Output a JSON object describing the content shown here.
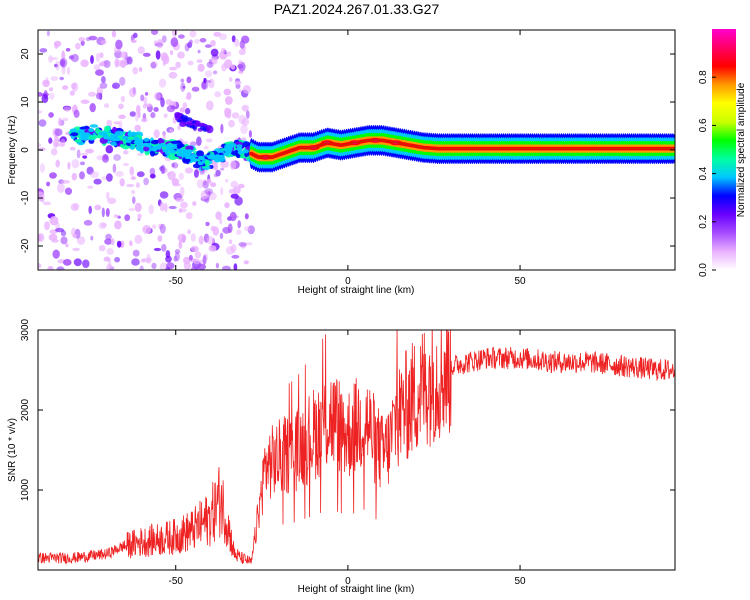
{
  "title": "PAZ1.2024.267.01.33.G27",
  "chart_data": [
    {
      "type": "heatmap",
      "xlabel": "Height of straight line (km)",
      "ylabel": "Frequency (Hz)",
      "xlim": [
        -90,
        95
      ],
      "ylim": [
        -25,
        25
      ],
      "x_ticks": [
        -50,
        0,
        50
      ],
      "y_ticks": [
        -20,
        -10,
        0,
        10,
        20
      ],
      "colorbar": {
        "label": "Normalized spectral amplitude",
        "range": [
          0,
          1
        ],
        "ticks": [
          "0.0",
          "0.2",
          "0.4",
          "0.6",
          "0.8"
        ],
        "colors": [
          "#ffffff",
          "#e9b0ff",
          "#a64dff",
          "#6a00ff",
          "#0000ff",
          "#00c8ff",
          "#00ff9e",
          "#00ff00",
          "#ccff00",
          "#ffff00",
          "#ff9900",
          "#ff0000",
          "#ff0066",
          "#ff00cc"
        ]
      },
      "ridge": {
        "x": [
          -78,
          -74,
          -70,
          -66,
          -62,
          -58,
          -54,
          -50,
          -46,
          -42,
          -38,
          -34,
          -30,
          -26,
          -22,
          -18,
          -14,
          -10,
          -6,
          -2,
          2,
          6,
          10,
          14,
          18,
          22,
          26,
          30,
          40,
          50,
          60,
          70,
          80,
          95
        ],
        "y": [
          3.0,
          3.5,
          3.0,
          2.5,
          2.0,
          1.0,
          0.5,
          0.0,
          -1.0,
          -2.5,
          -1.5,
          0.5,
          0.0,
          -1.5,
          -1.5,
          -0.5,
          0.5,
          0.5,
          1.5,
          1.0,
          1.5,
          2.0,
          2.0,
          1.5,
          1.0,
          0.5,
          0.3,
          0.3,
          0.3,
          0.3,
          0.3,
          0.3,
          0.3,
          0.3
        ]
      }
    },
    {
      "type": "line",
      "xlabel": "Height of straight line (km)",
      "ylabel": "SNR (10 * v/v)",
      "xlim": [
        -90,
        95
      ],
      "ylim": [
        0,
        3000
      ],
      "x_ticks": [
        -50,
        0,
        50
      ],
      "y_ticks": [
        1000,
        2000,
        3000
      ],
      "series": [
        {
          "color": "#ee2222",
          "x": [
            -90,
            -80,
            -70,
            -65,
            -60,
            -55,
            -50,
            -45,
            -40,
            -37,
            -35,
            -33,
            -31,
            -28,
            -26,
            -24,
            -20,
            -15,
            -10,
            -5,
            0,
            5,
            8,
            10,
            12,
            14,
            18,
            22,
            26,
            30,
            35,
            40,
            50,
            60,
            70,
            80,
            90,
            95
          ],
          "y": [
            150,
            150,
            200,
            300,
            350,
            380,
            420,
            500,
            650,
            900,
            600,
            200,
            150,
            100,
            700,
            1300,
            1400,
            1500,
            1700,
            1900,
            1700,
            1900,
            1600,
            1450,
            1550,
            1900,
            2100,
            2300,
            2450,
            2550,
            2600,
            2650,
            2650,
            2600,
            2600,
            2550,
            2500,
            2500
          ]
        }
      ]
    }
  ]
}
